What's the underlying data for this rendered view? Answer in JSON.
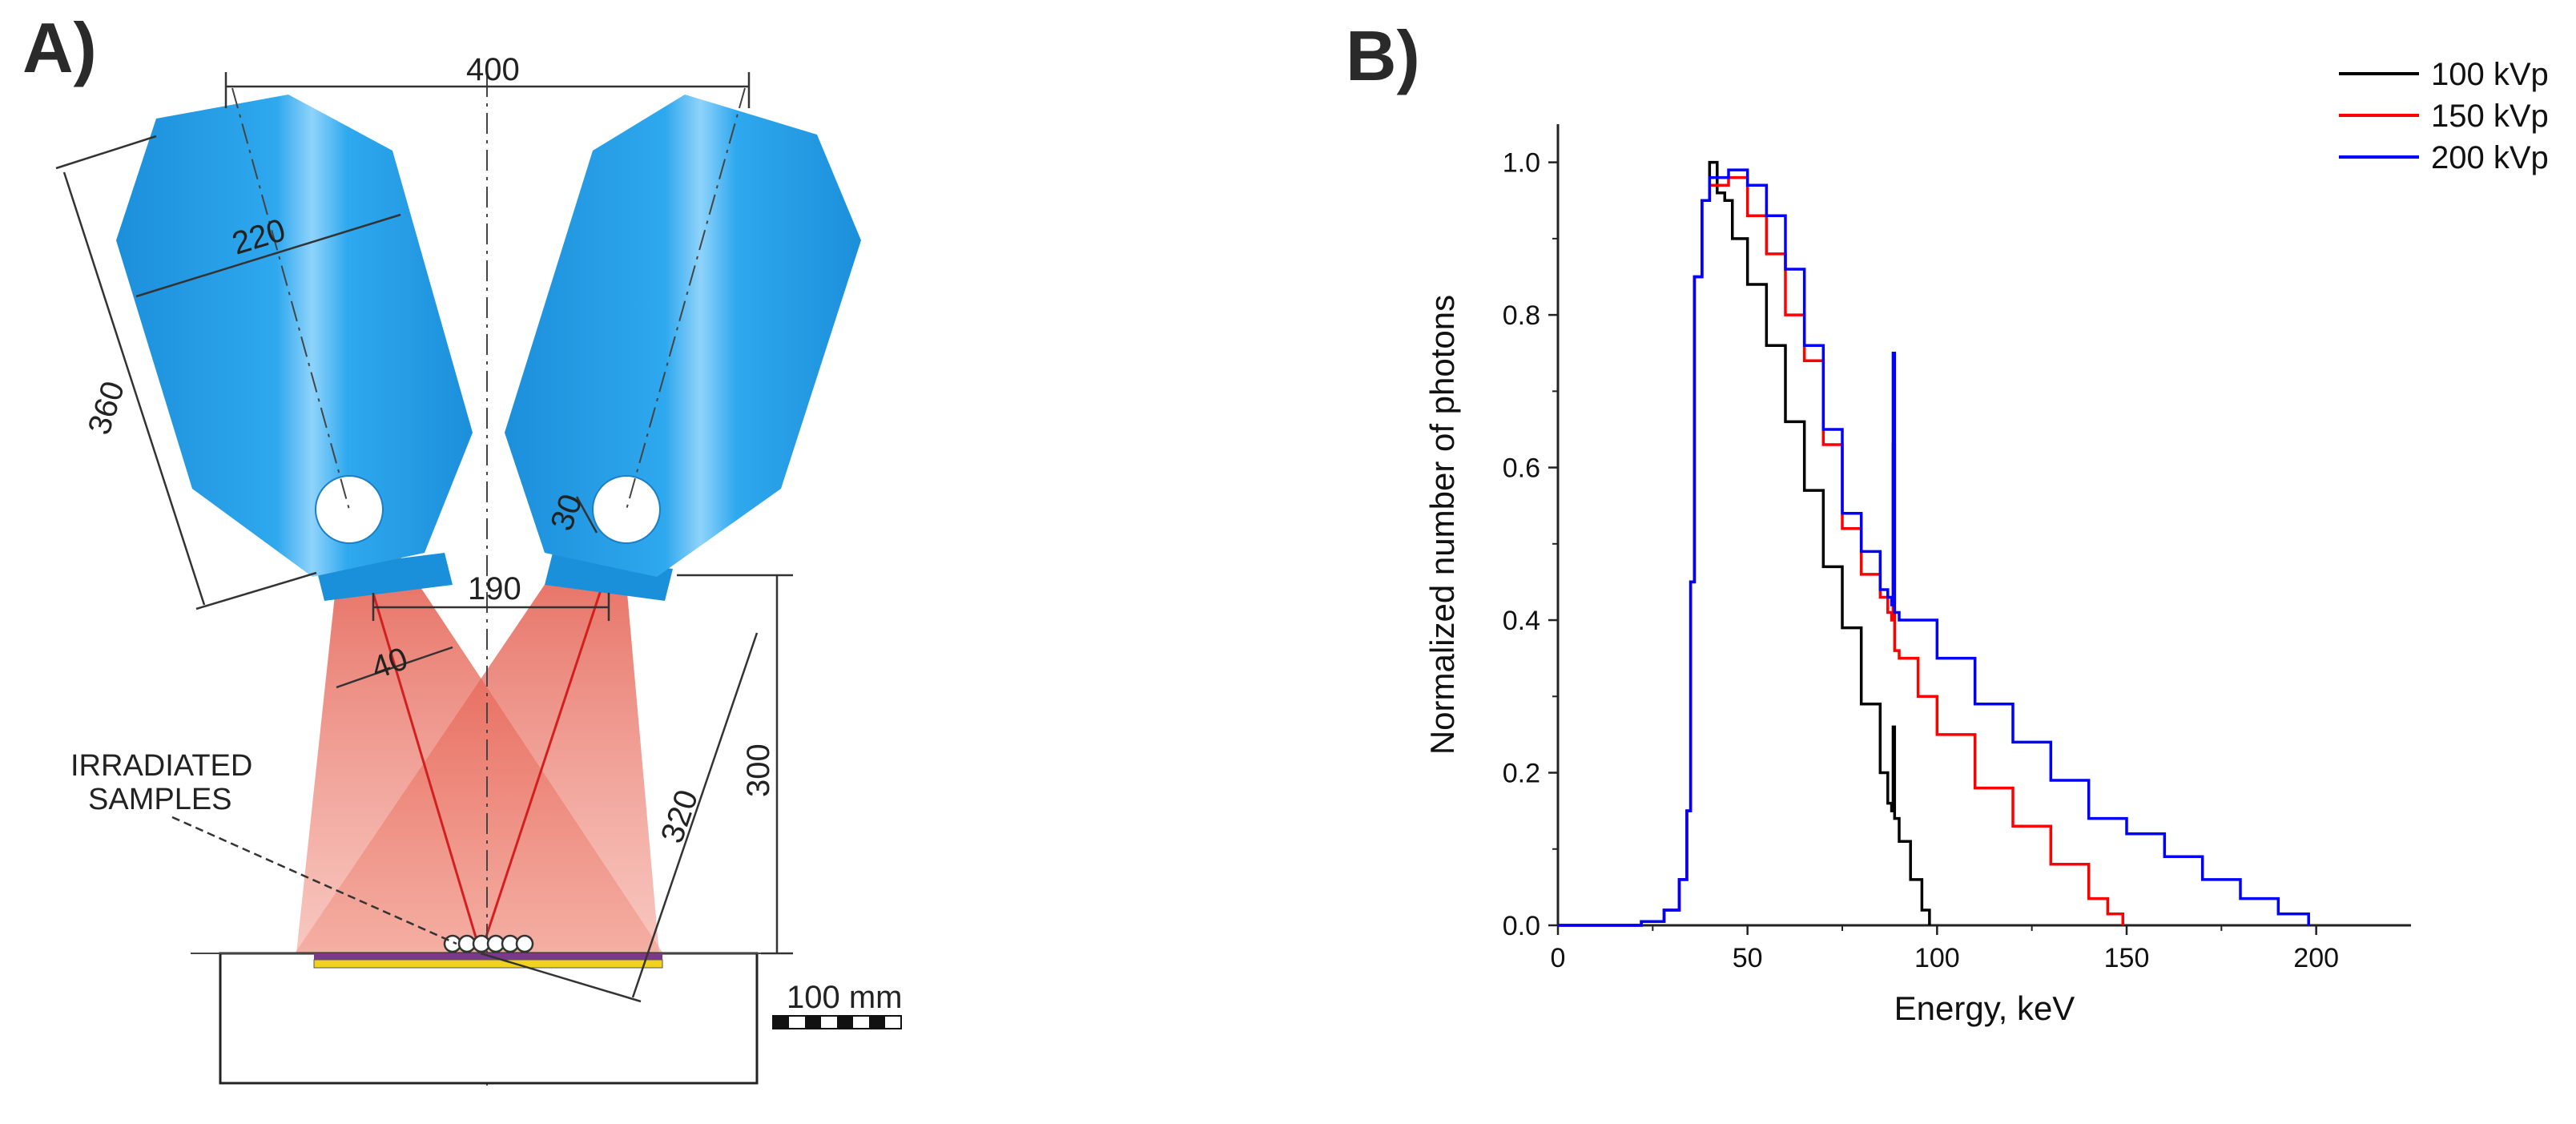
{
  "panel_a": {
    "label": "A)",
    "dimension_labels": {
      "d400": "400",
      "d220": "220",
      "d360": "360",
      "d30": "30",
      "d190": "190",
      "d40": "40",
      "d300": "300",
      "d320": "320"
    },
    "samples_label_line1": "IRRADIATED",
    "samples_label_line2": "SAMPLES",
    "scale_bar_label": "100 mm",
    "colors": {
      "tube": "#1e9be0",
      "beam": "#e05a4a",
      "beam_line": "#d21f1f",
      "plate": "#f2d21c",
      "plate_top": "#7a3a8a"
    }
  },
  "panel_b": {
    "label": "B)"
  },
  "chart_data": {
    "type": "line",
    "title": "",
    "xlabel": "Energy, keV",
    "ylabel": "Normalized number of photons",
    "xlim": [
      0,
      225
    ],
    "ylim": [
      0,
      1.05
    ],
    "xticks": [
      0,
      50,
      100,
      150,
      200
    ],
    "yticks": [
      0.0,
      0.2,
      0.4,
      0.6,
      0.8,
      1.0
    ],
    "xtick_labels": [
      "0",
      "50",
      "100",
      "150",
      "200"
    ],
    "ytick_labels": [
      "0.0",
      "0.2",
      "0.4",
      "0.6",
      "0.8",
      "1.0"
    ],
    "legend_position": "top-right",
    "series": [
      {
        "name": "100 kVp",
        "color": "#000000",
        "points": [
          [
            0,
            0
          ],
          [
            17,
            0
          ],
          [
            22,
            0.005
          ],
          [
            28,
            0.02
          ],
          [
            32,
            0.06
          ],
          [
            34,
            0.15
          ],
          [
            35,
            0.45
          ],
          [
            36,
            0.85
          ],
          [
            38,
            0.95
          ],
          [
            40,
            1.0
          ],
          [
            42,
            0.96
          ],
          [
            44,
            0.95
          ],
          [
            46,
            0.9
          ],
          [
            50,
            0.84
          ],
          [
            55,
            0.76
          ],
          [
            60,
            0.66
          ],
          [
            65,
            0.57
          ],
          [
            70,
            0.47
          ],
          [
            75,
            0.39
          ],
          [
            80,
            0.29
          ],
          [
            85,
            0.2
          ],
          [
            87,
            0.16
          ],
          [
            88,
            0.15
          ],
          [
            88.4,
            0.26
          ],
          [
            88.8,
            0.14
          ],
          [
            90,
            0.11
          ],
          [
            93,
            0.06
          ],
          [
            96,
            0.02
          ],
          [
            98,
            0
          ]
        ]
      },
      {
        "name": "150 kVp",
        "color": "#ff0000",
        "points": [
          [
            0,
            0
          ],
          [
            17,
            0
          ],
          [
            22,
            0.005
          ],
          [
            28,
            0.02
          ],
          [
            32,
            0.06
          ],
          [
            34,
            0.15
          ],
          [
            35,
            0.45
          ],
          [
            36,
            0.85
          ],
          [
            38,
            0.95
          ],
          [
            40,
            0.97
          ],
          [
            45,
            0.98
          ],
          [
            50,
            0.93
          ],
          [
            55,
            0.88
          ],
          [
            60,
            0.8
          ],
          [
            65,
            0.74
          ],
          [
            70,
            0.63
          ],
          [
            75,
            0.52
          ],
          [
            80,
            0.46
          ],
          [
            85,
            0.43
          ],
          [
            87,
            0.41
          ],
          [
            88,
            0.4
          ],
          [
            88.4,
            0.63
          ],
          [
            88.8,
            0.36
          ],
          [
            90,
            0.35
          ],
          [
            95,
            0.3
          ],
          [
            100,
            0.25
          ],
          [
            110,
            0.18
          ],
          [
            120,
            0.13
          ],
          [
            130,
            0.08
          ],
          [
            140,
            0.035
          ],
          [
            145,
            0.015
          ],
          [
            149,
            0
          ]
        ]
      },
      {
        "name": "200 kVp",
        "color": "#0000ff",
        "points": [
          [
            0,
            0
          ],
          [
            17,
            0
          ],
          [
            22,
            0.005
          ],
          [
            28,
            0.02
          ],
          [
            32,
            0.06
          ],
          [
            34,
            0.15
          ],
          [
            35,
            0.45
          ],
          [
            36,
            0.85
          ],
          [
            38,
            0.95
          ],
          [
            40,
            0.98
          ],
          [
            45,
            0.99
          ],
          [
            50,
            0.97
          ],
          [
            55,
            0.93
          ],
          [
            60,
            0.86
          ],
          [
            65,
            0.76
          ],
          [
            70,
            0.65
          ],
          [
            75,
            0.54
          ],
          [
            80,
            0.49
          ],
          [
            85,
            0.44
          ],
          [
            87,
            0.43
          ],
          [
            88,
            0.42
          ],
          [
            88.4,
            0.75
          ],
          [
            88.8,
            0.41
          ],
          [
            90,
            0.4
          ],
          [
            100,
            0.35
          ],
          [
            110,
            0.29
          ],
          [
            120,
            0.24
          ],
          [
            130,
            0.19
          ],
          [
            140,
            0.14
          ],
          [
            150,
            0.12
          ],
          [
            160,
            0.09
          ],
          [
            170,
            0.06
          ],
          [
            180,
            0.035
          ],
          [
            190,
            0.015
          ],
          [
            198,
            0
          ]
        ]
      }
    ]
  }
}
